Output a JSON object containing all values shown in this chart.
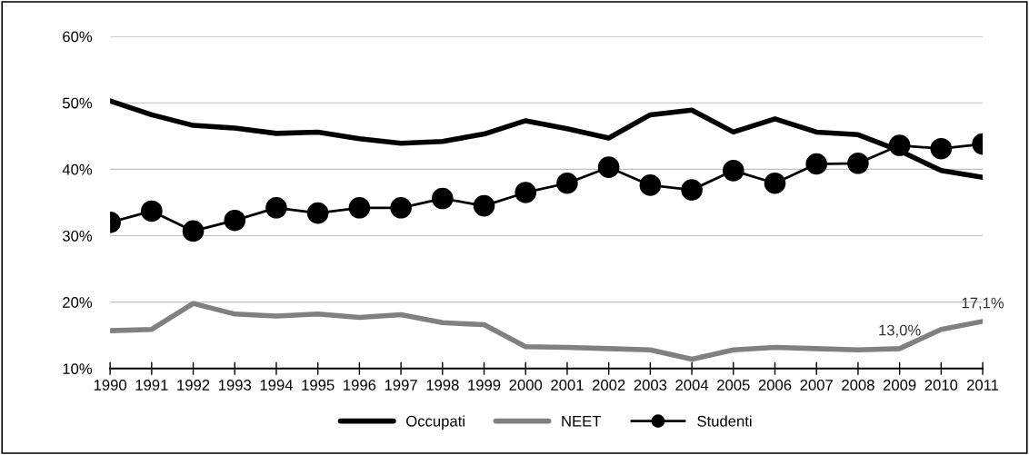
{
  "chart_data": {
    "type": "line",
    "categories": [
      "1990",
      "1991",
      "1992",
      "1993",
      "1994",
      "1995",
      "1996",
      "1997",
      "1998",
      "1999",
      "2000",
      "2001",
      "2002",
      "2003",
      "2004",
      "2005",
      "2006",
      "2007",
      "2008",
      "2009",
      "2010",
      "2011"
    ],
    "series": [
      {
        "name": "Occupati",
        "color": "#000000",
        "marker": "none",
        "values": [
          50.3,
          48.2,
          46.6,
          46.2,
          45.4,
          45.6,
          44.6,
          43.9,
          44.2,
          45.3,
          47.3,
          46.1,
          44.7,
          48.2,
          48.9,
          45.6,
          47.6,
          45.6,
          45.2,
          42.8,
          39.8,
          38.8
        ]
      },
      {
        "name": "NEET",
        "color": "#808080",
        "marker": "none",
        "values": [
          15.7,
          15.9,
          19.8,
          18.2,
          17.9,
          18.2,
          17.7,
          18.1,
          16.9,
          16.6,
          13.3,
          13.2,
          13.0,
          12.8,
          11.4,
          12.8,
          13.2,
          13.0,
          12.8,
          13.0,
          15.9,
          17.1
        ],
        "value_labels": [
          null,
          null,
          null,
          null,
          null,
          null,
          null,
          null,
          null,
          null,
          null,
          null,
          null,
          null,
          null,
          null,
          null,
          null,
          null,
          "13,0%",
          null,
          "17,1%"
        ]
      },
      {
        "name": "Studenti",
        "color": "#000000",
        "marker": "circle",
        "values": [
          32.0,
          33.7,
          30.7,
          32.3,
          34.2,
          33.4,
          34.2,
          34.2,
          35.6,
          34.5,
          36.5,
          37.9,
          40.3,
          37.6,
          36.9,
          39.8,
          37.9,
          40.8,
          40.9,
          43.6,
          43.1,
          43.8
        ]
      }
    ],
    "ylim": [
      10,
      60
    ],
    "yticks": [
      {
        "value": 10,
        "label": "10%"
      },
      {
        "value": 20,
        "label": "20%"
      },
      {
        "value": 30,
        "label": "30%"
      },
      {
        "value": 40,
        "label": "40%"
      },
      {
        "value": 50,
        "label": "50%"
      },
      {
        "value": 60,
        "label": "60%"
      }
    ],
    "grid": "y",
    "legend": "bottom",
    "line_style": "solid"
  }
}
